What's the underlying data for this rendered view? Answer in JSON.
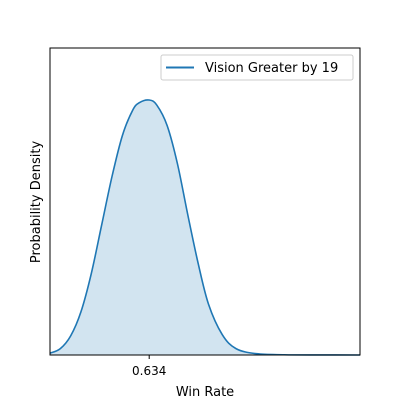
{
  "chart_data": {
    "type": "area",
    "title": "",
    "xlabel": "Win Rate",
    "ylabel": "Probability Density",
    "x_ticks": [
      0.634
    ],
    "x_tick_labels": [
      "0.634"
    ],
    "y_ticks": [],
    "xlim": [
      0.49,
      0.94
    ],
    "ylim": [
      0,
      1.0
    ],
    "grid": false,
    "legend_placement": "top-right",
    "series": [
      {
        "name": "Vision Greater by 19",
        "color": "#1f77b4",
        "fill_color": "#1f77b4",
        "fill_opacity": 0.2,
        "x": [
          0.49,
          0.505,
          0.52,
          0.535,
          0.55,
          0.565,
          0.58,
          0.595,
          0.61,
          0.62,
          0.634,
          0.645,
          0.66,
          0.675,
          0.69,
          0.705,
          0.72,
          0.74,
          0.76,
          0.79,
          0.83,
          0.88,
          0.94
        ],
        "y": [
          0.007,
          0.025,
          0.075,
          0.17,
          0.32,
          0.51,
          0.7,
          0.86,
          0.96,
          0.99,
          1.0,
          0.98,
          0.9,
          0.75,
          0.55,
          0.36,
          0.2,
          0.08,
          0.025,
          0.005,
          0.001,
          0.0002,
          0.0
        ]
      }
    ]
  }
}
